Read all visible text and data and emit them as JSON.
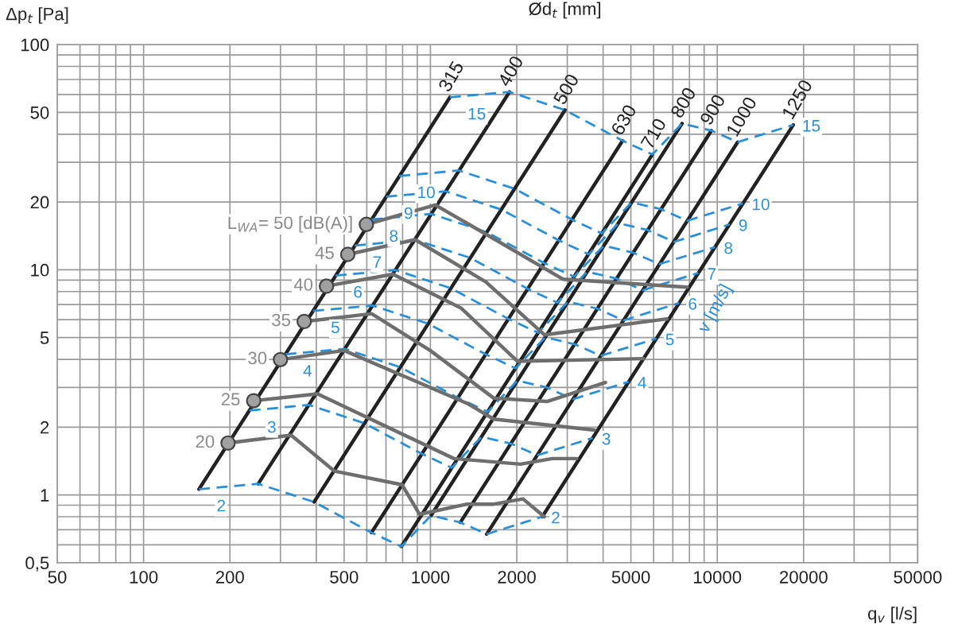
{
  "chart_data": {
    "type": "line",
    "xlabel": "q$_{v}$ [l/s]",
    "ylabel": "Δp$_{t}$ [Pa]",
    "annotations": [
      "Ød$_{t}$ [mm]",
      "v [m/s]"
    ],
    "log": "xy",
    "grid": true,
    "xlim": [
      50,
      50000
    ],
    "ylim": [
      0.5,
      100
    ],
    "xticks": [
      50,
      100,
      200,
      500,
      1000,
      2000,
      5000,
      10000,
      20000,
      50000
    ],
    "yticks": [
      {
        "value": 0.5,
        "label": "0,5"
      },
      1,
      2,
      5,
      10,
      20,
      50,
      100
    ],
    "series": [
      {
        "name": "315",
        "color": "#222222",
        "line_style": "solid",
        "marker": "none",
        "x": [
          156,
          1169
        ],
        "values": [
          1.06,
          58.3
        ]
      },
      {
        "name": "400",
        "color": "#222222",
        "line_style": "solid",
        "marker": "none",
        "x": [
          251,
          1886
        ],
        "values": [
          1.12,
          61.6
        ]
      },
      {
        "name": "500",
        "color": "#222222",
        "line_style": "solid",
        "marker": "none",
        "x": [
          393,
          2945
        ],
        "values": [
          0.93,
          51.2
        ]
      },
      {
        "name": "630",
        "color": "#222222",
        "line_style": "solid",
        "marker": "none",
        "x": [
          623,
          4676
        ],
        "values": [
          0.68,
          37.4
        ]
      },
      {
        "name": "710",
        "color": "#222222",
        "line_style": "solid",
        "marker": "none",
        "x": [
          792,
          5939
        ],
        "values": [
          0.59,
          32.5
        ]
      },
      {
        "name": "800",
        "color": "#222222",
        "line_style": "solid",
        "marker": "none",
        "x": [
          1005,
          7540
        ],
        "values": [
          0.81,
          44.6
        ]
      },
      {
        "name": "900",
        "color": "#222222",
        "line_style": "solid",
        "marker": "none",
        "x": [
          1272,
          9543
        ],
        "values": [
          0.755,
          41.5
        ]
      },
      {
        "name": "1000",
        "color": "#222222",
        "line_style": "solid",
        "marker": "none",
        "x": [
          1571,
          11781
        ],
        "values": [
          0.67,
          36.9
        ]
      },
      {
        "name": "1250",
        "color": "#222222",
        "line_style": "solid",
        "marker": "none",
        "x": [
          2454,
          18408
        ],
        "values": [
          0.8,
          44.0
        ]
      },
      {
        "name": "2",
        "color": "#2a8fd6",
        "line_style": "dashed",
        "marker": "none",
        "x": [
          156,
          251,
          393,
          623,
          792,
          1005,
          1272,
          1571,
          2454
        ],
        "values": [
          1.06,
          1.12,
          0.93,
          0.68,
          0.59,
          0.81,
          0.755,
          0.67,
          0.8
        ]
      },
      {
        "name": "3",
        "color": "#2a8fd6",
        "line_style": "dashed",
        "marker": "none",
        "x": [
          234,
          377,
          589,
          935,
          1188,
          1508,
          1909,
          2356,
          3682
        ],
        "values": [
          2.37,
          2.51,
          2.08,
          1.52,
          1.32,
          1.81,
          1.69,
          1.5,
          1.79
        ]
      },
      {
        "name": "4",
        "color": "#2a8fd6",
        "line_style": "dashed",
        "marker": "none",
        "x": [
          312,
          503,
          785,
          1247,
          1584,
          2011,
          2545,
          3142,
          4909
        ],
        "values": [
          4.21,
          4.45,
          3.69,
          2.7,
          2.34,
          3.22,
          3.0,
          2.66,
          3.18
        ]
      },
      {
        "name": "5",
        "color": "#2a8fd6",
        "line_style": "dashed",
        "marker": "none",
        "x": [
          390,
          629,
          982,
          1559,
          1980,
          2514,
          3181,
          3927,
          6136
        ],
        "values": [
          6.56,
          6.93,
          5.76,
          4.21,
          3.65,
          5.01,
          4.67,
          4.15,
          4.95
        ]
      },
      {
        "name": "6",
        "color": "#2a8fd6",
        "line_style": "dashed",
        "marker": "none",
        "x": [
          467,
          754,
          1178,
          1870,
          2375,
          3016,
          3817,
          4712,
          7363
        ],
        "values": [
          9.43,
          9.97,
          8.28,
          6.05,
          5.25,
          7.21,
          6.72,
          5.96,
          7.12
        ]
      },
      {
        "name": "7",
        "color": "#2a8fd6",
        "line_style": "dashed",
        "marker": "none",
        "x": [
          545,
          880,
          1374,
          2182,
          2771,
          3519,
          4453,
          5498,
          8590
        ],
        "values": [
          12.8,
          13.6,
          11.3,
          8.23,
          7.14,
          9.8,
          9.14,
          8.11,
          9.68
        ]
      },
      {
        "name": "8",
        "color": "#2a8fd6",
        "line_style": "dashed",
        "marker": "none",
        "x": [
          623,
          1006,
          1570,
          2494,
          3167,
          4022,
          5090,
          6283,
          9818
        ],
        "values": [
          16.7,
          17.7,
          14.7,
          10.7,
          9.32,
          12.8,
          11.9,
          10.6,
          12.6
        ]
      },
      {
        "name": "9",
        "color": "#2a8fd6",
        "line_style": "dashed",
        "marker": "none",
        "x": [
          701,
          1131,
          1767,
          2805,
          3563,
          4524,
          5726,
          7069,
          11045
        ],
        "values": [
          21.1,
          22.3,
          18.5,
          13.5,
          11.7,
          16.1,
          15.0,
          13.3,
          15.9
        ]
      },
      {
        "name": "10",
        "color": "#2a8fd6",
        "line_style": "dashed",
        "marker": "none",
        "x": [
          779,
          1257,
          1963,
          3117,
          3959,
          5027,
          6362,
          7854,
          12272
        ],
        "values": [
          26.1,
          27.6,
          22.9,
          16.7,
          14.5,
          19.9,
          18.6,
          16.5,
          19.7
        ]
      },
      {
        "name": "15",
        "color": "#2a8fd6",
        "line_style": "dashed",
        "marker": "none",
        "x": [
          1169,
          1886,
          2945,
          4676,
          5939,
          7540,
          9543,
          11781,
          18408
        ],
        "values": [
          58.3,
          61.6,
          51.2,
          37.4,
          32.5,
          44.6,
          41.5,
          36.9,
          44.0
        ]
      },
      {
        "type": "scatter",
        "color": "#a0a0a0",
        "marker": "circle",
        "x": [
          197,
          242,
          300,
          363,
          434,
          515,
          598
        ],
        "values": [
          1.7,
          2.62,
          3.99,
          5.89,
          8.46,
          11.7,
          15.9
        ]
      },
      {
        "name": "20",
        "color": "#6e6e6e",
        "line_style": "solid",
        "x": [
          197,
          327,
          463,
          796,
          916,
          1343,
          1663,
          2103,
          2495
        ],
        "values": [
          1.7,
          1.84,
          1.275,
          1.11,
          0.82,
          0.91,
          0.91,
          0.96,
          0.8
        ]
      },
      {
        "name": "25",
        "color": "#6e6e6e",
        "line_style": "solid",
        "x": [
          242,
          404,
          1208,
          2060,
          2660,
          3236
        ],
        "values": [
          2.62,
          2.81,
          1.45,
          1.37,
          1.45,
          1.45
        ]
      },
      {
        "name": "30",
        "color": "#6e6e6e",
        "line_style": "solid",
        "x": [
          300,
          500,
          1343,
          1663,
          3000,
          3727
        ],
        "values": [
          3.99,
          4.38,
          2.55,
          2.17,
          2.0,
          1.94
        ]
      },
      {
        "name": "35",
        "color": "#6e6e6e",
        "line_style": "solid",
        "x": [
          363,
          624,
          998,
          1663,
          2550,
          4076
        ],
        "values": [
          5.89,
          6.38,
          4.38,
          2.69,
          2.6,
          3.16
        ]
      },
      {
        "name": "40",
        "color": "#6e6e6e",
        "line_style": "solid",
        "x": [
          434,
          740,
          1282,
          2013,
          5540
        ],
        "values": [
          8.46,
          9.55,
          6.74,
          3.92,
          4.03
        ]
      },
      {
        "name": "45",
        "color": "#6e6e6e",
        "line_style": "solid",
        "x": [
          515,
          885,
          1560,
          2496,
          6680
        ],
        "values": [
          11.7,
          13.6,
          8.83,
          5.14,
          6.05
        ]
      },
      {
        "name": "L$_{WA}$= 50 [dB(A)]",
        "color": "#6e6e6e",
        "line_style": "solid",
        "x": [
          598,
          1040,
          1560,
          2896,
          7860
        ],
        "values": [
          15.9,
          19.4,
          14.4,
          9.08,
          8.37
        ]
      }
    ]
  }
}
